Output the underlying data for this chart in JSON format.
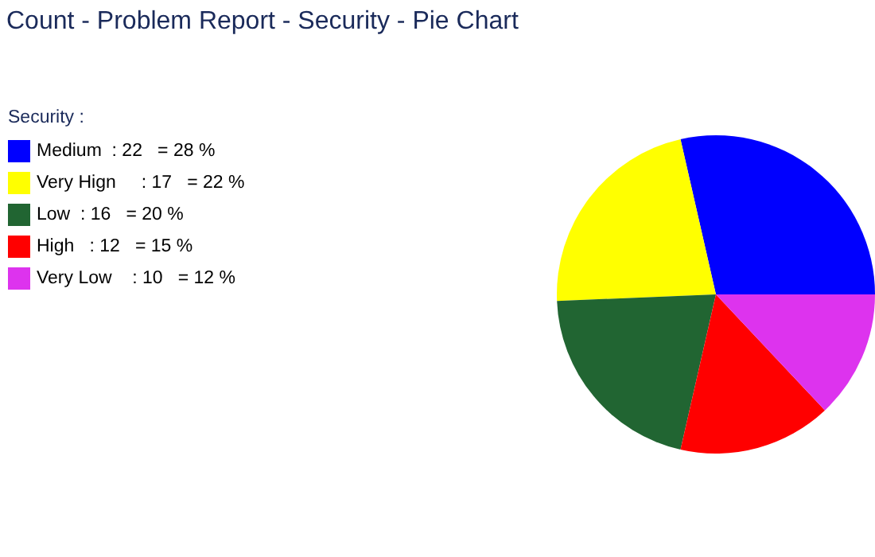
{
  "chart_data": {
    "type": "pie",
    "title": "Count - Problem Report - Security - Pie Chart",
    "legend_title": "Security :",
    "categories": [
      "Medium  : 22   = 28 %",
      "Very Hign     : 17   = 22 %",
      "Low  : 16   = 20 %",
      "High   : 12   = 15 %",
      "Very Low    : 10   = 12 %"
    ],
    "values": [
      22,
      17,
      16,
      12,
      10
    ],
    "colors": [
      "#0000ff",
      "#ffff00",
      "#216532",
      "#ff0000",
      "#dd33ee"
    ],
    "legend": "left"
  }
}
